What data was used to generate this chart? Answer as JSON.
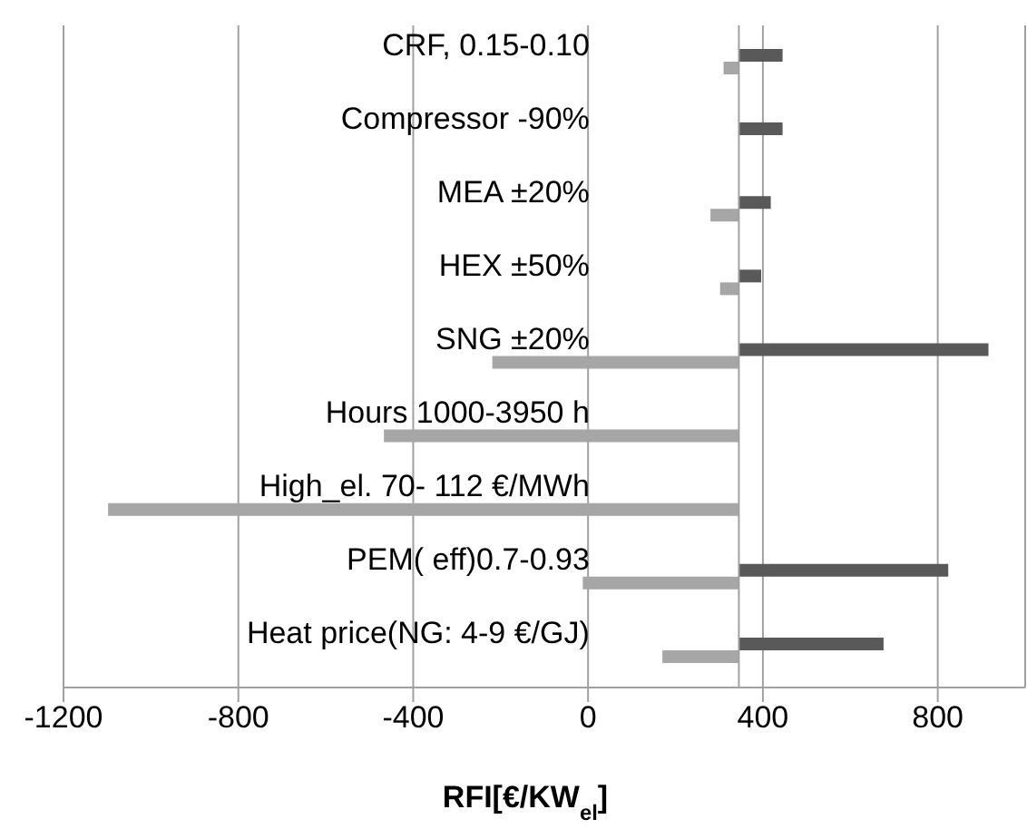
{
  "chart_data": {
    "type": "bar",
    "orientation": "horizontal",
    "xlabel": "RFI[€/KW$_{el}$]",
    "categories": [
      "CRF, 0.15-0.10",
      "Compressor -90%",
      "MEA ±20%",
      "HEX  ±50%",
      "SNG ±20%",
      "Hours 1000-3950 h",
      "High_el. 70- 112 €/MWh",
      "PEM( eff)0.7-0.93",
      "Heat price(NG: 4-9 €/GJ)"
    ],
    "series": [
      {
        "color": "#595959",
        "base": [
          345,
          345,
          345,
          345,
          345,
          null,
          null,
          345,
          345
        ],
        "values": [
          100,
          100,
          73,
          51,
          571,
          null,
          null,
          479,
          331
        ]
      },
      {
        "color": "#a6a6a6",
        "base": [
          345,
          null,
          345,
          345,
          345,
          345,
          345,
          345,
          345
        ],
        "values": [
          -35,
          null,
          -65,
          -43,
          -564,
          -812,
          -1443,
          -357,
          -175
        ]
      }
    ],
    "xlim": [
      -1200,
      1000
    ],
    "xticks": [
      -1200,
      -800,
      -400,
      0,
      400,
      800
    ],
    "grid": "x",
    "legend": false
  }
}
